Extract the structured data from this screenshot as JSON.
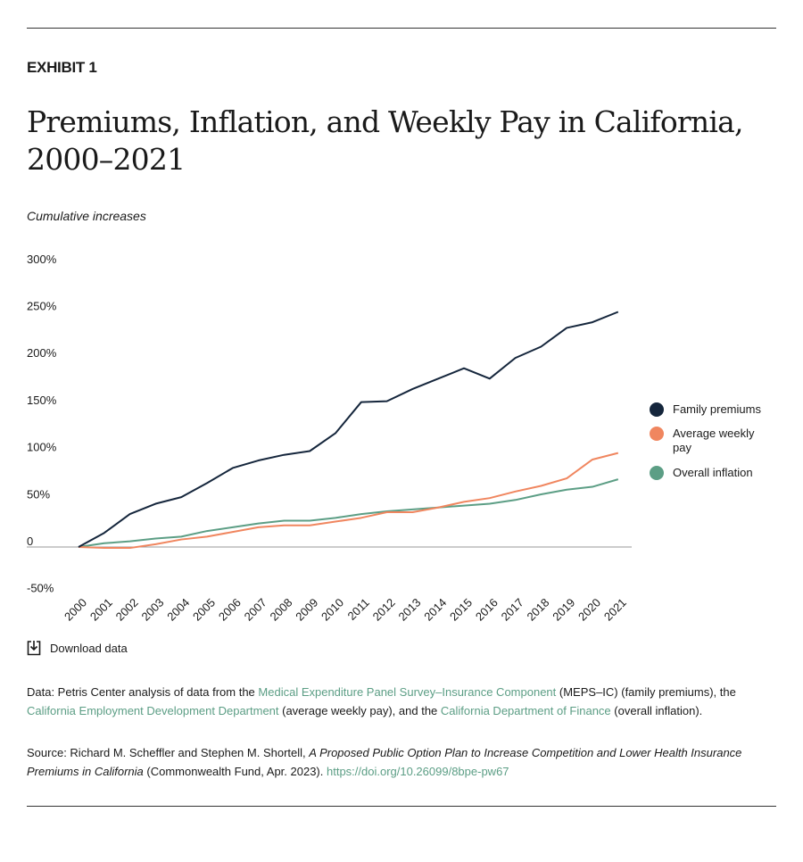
{
  "header": {
    "exhibit": "EXHIBIT 1",
    "title": "Premiums, Inflation, and Weekly Pay in California, 2000–2021",
    "subtitle": "Cumulative increases"
  },
  "chart_data": {
    "type": "line",
    "ylabel": "Cumulative increases",
    "ylim": [
      -50,
      300
    ],
    "yticks": [
      300,
      250,
      200,
      150,
      100,
      50,
      0,
      -50
    ],
    "ytick_labels": [
      "300%",
      "250%",
      "200%",
      "150%",
      "100%",
      "50%",
      "0",
      "-50%"
    ],
    "x": [
      "2000",
      "2001",
      "2002",
      "2003",
      "2004",
      "2005",
      "2006",
      "2007",
      "2008",
      "2009",
      "2010",
      "2011",
      "2012",
      "2013",
      "2014",
      "2015",
      "2016",
      "2017",
      "2018",
      "2019",
      "2020",
      "2021"
    ],
    "grid": false,
    "legend_position": "right",
    "series": [
      {
        "name": "Family premiums",
        "color": "#15263c",
        "values": [
          0,
          15,
          35,
          46,
          53,
          68,
          84,
          92,
          98,
          102,
          121,
          154,
          155,
          168,
          179,
          190,
          179,
          201,
          213,
          233,
          239,
          250
        ]
      },
      {
        "name": "Average weekly pay",
        "color": "#f0865f",
        "values": [
          0,
          -1,
          -1,
          3,
          8,
          11,
          16,
          21,
          23,
          23,
          27,
          31,
          37,
          37,
          42,
          48,
          52,
          59,
          65,
          73,
          93,
          100
        ]
      },
      {
        "name": "Overall inflation",
        "color": "#5c9e85",
        "values": [
          0,
          4,
          6,
          9,
          11,
          17,
          21,
          25,
          28,
          28,
          31,
          35,
          38,
          40,
          42,
          44,
          46,
          50,
          56,
          61,
          64,
          72
        ]
      }
    ]
  },
  "download": {
    "label": "Download data",
    "icon": "download-icon"
  },
  "notes": {
    "data_prefix": "Data: Petris Center analysis of data from the ",
    "link1": "Medical Expenditure Panel Survey–Insurance Component",
    "mid1": " (MEPS–IC) (family premiums), the ",
    "link2": "California Employment Development Department",
    "mid2": " (average weekly pay), and the ",
    "link3": "California Department of Finance",
    "end": " (overall inflation).",
    "source_prefix": "Source: Richard M. Scheffler and Stephen M. Shortell, ",
    "source_title": "A Proposed Public Option Plan to Increase Competition and Lower Health Insurance Premiums in California",
    "source_mid": " (Commonwealth Fund, Apr. 2023). ",
    "doi": "https://doi.org/10.26099/8bpe-pw67"
  },
  "colors": {
    "link": "#5c9e85",
    "premiums": "#15263c",
    "pay": "#f0865f",
    "inflation": "#5c9e85"
  }
}
